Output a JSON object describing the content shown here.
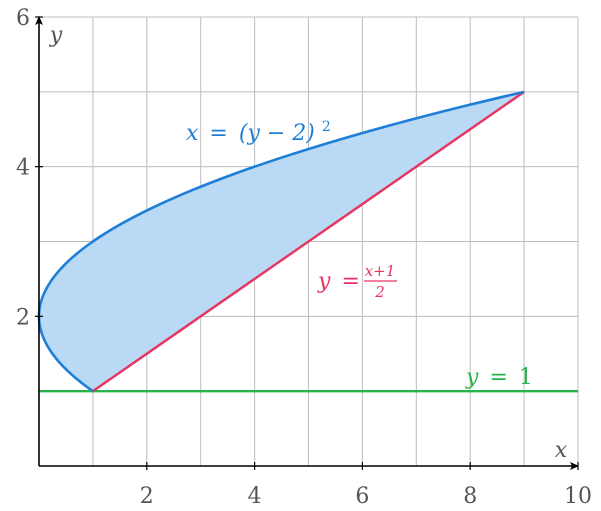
{
  "chart_data": {
    "type": "line",
    "title": "",
    "xlabel": "x",
    "ylabel": "y",
    "xlim": [
      0,
      10
    ],
    "ylim": [
      0,
      6
    ],
    "grid": true,
    "x_ticks": [
      2,
      4,
      6,
      8,
      10
    ],
    "y_ticks": [
      2,
      4,
      6
    ],
    "x_tick_labels": [
      "2",
      "4",
      "6",
      "8",
      "10"
    ],
    "y_tick_labels": [
      "2",
      "4",
      "6"
    ],
    "series": [
      {
        "label": "x = (y − 2)²",
        "color": "#1f7fd6",
        "points": [
          [
            1,
            1
          ],
          [
            0.25,
            1.5
          ],
          [
            0,
            2
          ],
          [
            0.25,
            2.5
          ],
          [
            1,
            3
          ],
          [
            2.25,
            3.5
          ],
          [
            4,
            4
          ],
          [
            6.25,
            4.5
          ],
          [
            9,
            5
          ]
        ]
      },
      {
        "label": "y = (x+1)/2",
        "color": "#e8335f",
        "points": [
          [
            1,
            1
          ],
          [
            9,
            5
          ]
        ]
      },
      {
        "label": "y = 1",
        "color": "#27b34a",
        "points": [
          [
            0,
            1
          ],
          [
            10,
            1
          ]
        ]
      }
    ],
    "shaded_region": {
      "color": "#b9d9f5",
      "description_bounds": "between x = (y-2)^2 and y = (x+1)/2 for 1 <= y <= 5"
    },
    "annotations": {
      "parabola": {
        "lhs": "x",
        "eq": "=",
        "body": "(y − 2)",
        "exp": "2"
      },
      "line": {
        "lhs": "y",
        "eq": "=",
        "num": "x+1",
        "den": "2"
      },
      "horizontal": {
        "lhs": "y",
        "eq": "=",
        "rhs": "1"
      }
    }
  }
}
